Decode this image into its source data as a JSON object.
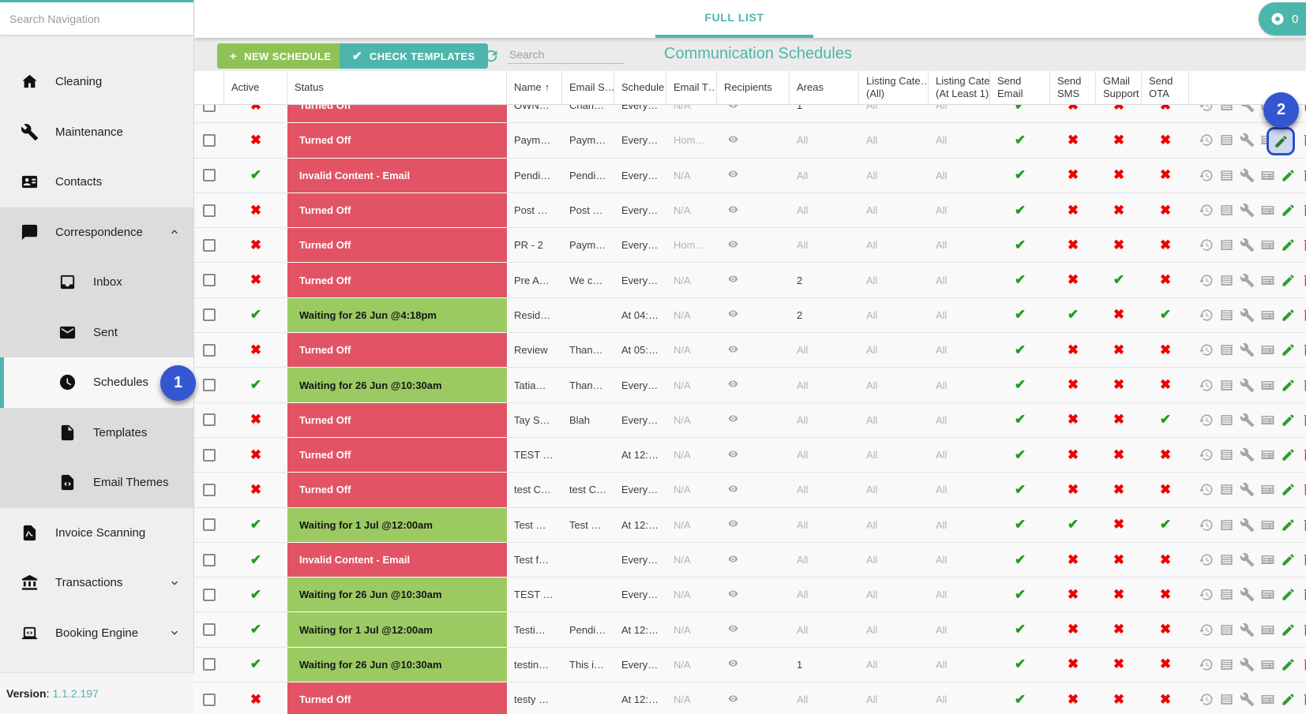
{
  "colors": {
    "accent_teal": "#4db6ac",
    "button_green": "#8fc255",
    "status_red": "#e25465",
    "status_green": "#9bca63",
    "check_green": "#1e9e1e",
    "cross_red": "#ee0000",
    "annotation_blue": "#3456d0"
  },
  "sidebar": {
    "search_placeholder": "Search Navigation",
    "items": [
      {
        "label": "Cleaning",
        "icon": "home-icon"
      },
      {
        "label": "Maintenance",
        "icon": "wrench-icon"
      },
      {
        "label": "Contacts",
        "icon": "contact-card-icon"
      },
      {
        "label": "Correspondence",
        "icon": "chat-bubble-icon",
        "chevron": "up",
        "group": true
      },
      {
        "label": "Inbox",
        "icon": "inbox-icon",
        "sub": true,
        "group": true
      },
      {
        "label": "Sent",
        "icon": "envelope-icon",
        "sub": true,
        "group": true
      },
      {
        "label": "Schedules",
        "icon": "clock-icon",
        "sub": true,
        "selected": true
      },
      {
        "label": "Templates",
        "icon": "file-icon",
        "sub": true,
        "group": true
      },
      {
        "label": "Email Themes",
        "icon": "file-code-icon",
        "sub": true,
        "group": true
      },
      {
        "label": "Invoice Scanning",
        "icon": "file-pdf-icon"
      },
      {
        "label": "Transactions",
        "icon": "bank-icon",
        "chevron": "down"
      },
      {
        "label": "Booking Engine",
        "icon": "laptop-icon",
        "chevron": "down"
      }
    ],
    "version_label": "Version",
    "version_value": "1.1.2.197"
  },
  "topbar": {
    "tab_label": "FULL LIST",
    "counter_value": "0"
  },
  "toolbar": {
    "new_schedule_label": "NEW SCHEDULE",
    "check_templates_label": "CHECK TEMPLATES",
    "search_placeholder": "Search",
    "title": "Communication Schedules"
  },
  "table": {
    "columns": [
      {
        "label": ""
      },
      {
        "label": "Active"
      },
      {
        "label": "Status"
      },
      {
        "label": "Name",
        "sort": "↑"
      },
      {
        "label": "Email S…"
      },
      {
        "label": "Schedule"
      },
      {
        "label": "Email T…"
      },
      {
        "label": "Recipients"
      },
      {
        "label": "Areas"
      },
      {
        "label": "Listing Cate…",
        "label2": "(All)"
      },
      {
        "label": "Listing Cate…",
        "label2": "(At Least 1)"
      },
      {
        "label": "Send",
        "label2": "Email"
      },
      {
        "label": "Send",
        "label2": "SMS"
      },
      {
        "label": "GMail",
        "label2": "Support"
      },
      {
        "label": "Send",
        "label2": "OTA"
      },
      {
        "label": ""
      }
    ],
    "rows": [
      {
        "active": false,
        "status": "Turned Off",
        "status_color": "red",
        "name": "OWN…",
        "email_subject": "Chari…",
        "schedule": "Every…",
        "email_template": "N/A",
        "areas": "1",
        "listing_all": "All",
        "listing_one": "All",
        "send_email": true,
        "send_sms": false,
        "gmail_support": false,
        "send_ota": false
      },
      {
        "active": false,
        "status": "Turned Off",
        "status_color": "red",
        "name": "Paym…",
        "email_subject": "Paym…",
        "schedule": "Every…",
        "email_template": "Hom…",
        "areas": "All",
        "listing_all": "All",
        "listing_one": "All",
        "send_email": true,
        "send_sms": false,
        "gmail_support": false,
        "send_ota": false
      },
      {
        "active": true,
        "status": "Invalid Content - Email",
        "status_color": "red",
        "name": "Pendi…",
        "email_subject": "Pendi…",
        "schedule": "Every…",
        "email_template": "N/A",
        "areas": "All",
        "listing_all": "All",
        "listing_one": "All",
        "send_email": true,
        "send_sms": false,
        "gmail_support": false,
        "send_ota": false
      },
      {
        "active": false,
        "status": "Turned Off",
        "status_color": "red",
        "name": "Post …",
        "email_subject": "Post …",
        "schedule": "Every…",
        "email_template": "N/A",
        "areas": "All",
        "listing_all": "All",
        "listing_one": "All",
        "send_email": true,
        "send_sms": false,
        "gmail_support": false,
        "send_ota": false
      },
      {
        "active": false,
        "status": "Turned Off",
        "status_color": "red",
        "name": "PR - 2",
        "email_subject": "Paym…",
        "schedule": "Every…",
        "email_template": "Hom…",
        "areas": "All",
        "listing_all": "All",
        "listing_one": "All",
        "send_email": true,
        "send_sms": false,
        "gmail_support": false,
        "send_ota": false
      },
      {
        "active": false,
        "status": "Turned Off",
        "status_color": "red",
        "name": "Pre A…",
        "email_subject": "We c…",
        "schedule": "Every…",
        "email_template": "N/A",
        "areas": "2",
        "listing_all": "All",
        "listing_one": "All",
        "send_email": true,
        "send_sms": false,
        "gmail_support": true,
        "send_ota": false
      },
      {
        "active": true,
        "status": "Waiting for 26 Jun @4:18pm",
        "status_color": "green",
        "name": "Resid…",
        "email_subject": "",
        "schedule": "At 04:…",
        "email_template": "N/A",
        "areas": "2",
        "listing_all": "All",
        "listing_one": "All",
        "send_email": true,
        "send_sms": true,
        "gmail_support": false,
        "send_ota": true
      },
      {
        "active": false,
        "status": "Turned Off",
        "status_color": "red",
        "name": "Review",
        "email_subject": "Than…",
        "schedule": "At 05:…",
        "email_template": "N/A",
        "areas": "All",
        "listing_all": "All",
        "listing_one": "All",
        "send_email": true,
        "send_sms": false,
        "gmail_support": false,
        "send_ota": false
      },
      {
        "active": true,
        "status": "Waiting for 26 Jun @10:30am",
        "status_color": "green",
        "name": "Tatia…",
        "email_subject": "Than…",
        "schedule": "Every…",
        "email_template": "N/A",
        "areas": "All",
        "listing_all": "All",
        "listing_one": "All",
        "send_email": true,
        "send_sms": false,
        "gmail_support": false,
        "send_ota": false
      },
      {
        "active": false,
        "status": "Turned Off",
        "status_color": "red",
        "name": "Tay S…",
        "email_subject": "Blah",
        "schedule": "Every…",
        "email_template": "N/A",
        "areas": "All",
        "listing_all": "All",
        "listing_one": "All",
        "send_email": true,
        "send_sms": false,
        "gmail_support": false,
        "send_ota": true
      },
      {
        "active": false,
        "status": "Turned Off",
        "status_color": "red",
        "name": "TEST …",
        "email_subject": "",
        "schedule": "At 12:…",
        "email_template": "N/A",
        "areas": "All",
        "listing_all": "All",
        "listing_one": "All",
        "send_email": true,
        "send_sms": false,
        "gmail_support": false,
        "send_ota": false
      },
      {
        "active": false,
        "status": "Turned Off",
        "status_color": "red",
        "name": "test C…",
        "email_subject": "test C…",
        "schedule": "Every…",
        "email_template": "N/A",
        "areas": "All",
        "listing_all": "All",
        "listing_one": "All",
        "send_email": true,
        "send_sms": false,
        "gmail_support": false,
        "send_ota": false
      },
      {
        "active": true,
        "status": "Waiting for 1 Jul @12:00am",
        "status_color": "green",
        "name": "Test …",
        "email_subject": "Test …",
        "schedule": "At 12:…",
        "email_template": "N/A",
        "areas": "All",
        "listing_all": "All",
        "listing_one": "All",
        "send_email": true,
        "send_sms": true,
        "gmail_support": false,
        "send_ota": true
      },
      {
        "active": true,
        "status": "Invalid Content - Email",
        "status_color": "red",
        "name": "Test f…",
        "email_subject": "",
        "schedule": "Every…",
        "email_template": "N/A",
        "areas": "All",
        "listing_all": "All",
        "listing_one": "All",
        "send_email": true,
        "send_sms": false,
        "gmail_support": false,
        "send_ota": false
      },
      {
        "active": true,
        "status": "Waiting for 26 Jun @10:30am",
        "status_color": "green",
        "name": "TEST …",
        "email_subject": "",
        "schedule": "Every…",
        "email_template": "N/A",
        "areas": "All",
        "listing_all": "All",
        "listing_one": "All",
        "send_email": true,
        "send_sms": false,
        "gmail_support": false,
        "send_ota": false
      },
      {
        "active": true,
        "status": "Waiting for 1 Jul @12:00am",
        "status_color": "green",
        "name": "Testi…",
        "email_subject": "Pendi…",
        "schedule": "At 12:…",
        "email_template": "N/A",
        "areas": "All",
        "listing_all": "All",
        "listing_one": "All",
        "send_email": true,
        "send_sms": false,
        "gmail_support": false,
        "send_ota": false
      },
      {
        "active": true,
        "status": "Waiting for 26 Jun @10:30am",
        "status_color": "green",
        "name": "testin…",
        "email_subject": "This i…",
        "schedule": "Every…",
        "email_template": "N/A",
        "areas": "1",
        "listing_all": "All",
        "listing_one": "All",
        "send_email": true,
        "send_sms": false,
        "gmail_support": false,
        "send_ota": false
      },
      {
        "active": false,
        "status": "Turned Off",
        "status_color": "red",
        "name": "testy …",
        "email_subject": "",
        "schedule": "At 12:…",
        "email_template": "N/A",
        "areas": "All",
        "listing_all": "All",
        "listing_one": "All",
        "send_email": true,
        "send_sms": false,
        "gmail_support": false,
        "send_ota": false
      }
    ]
  },
  "annotations": {
    "badge_1": "1",
    "badge_2": "2"
  }
}
